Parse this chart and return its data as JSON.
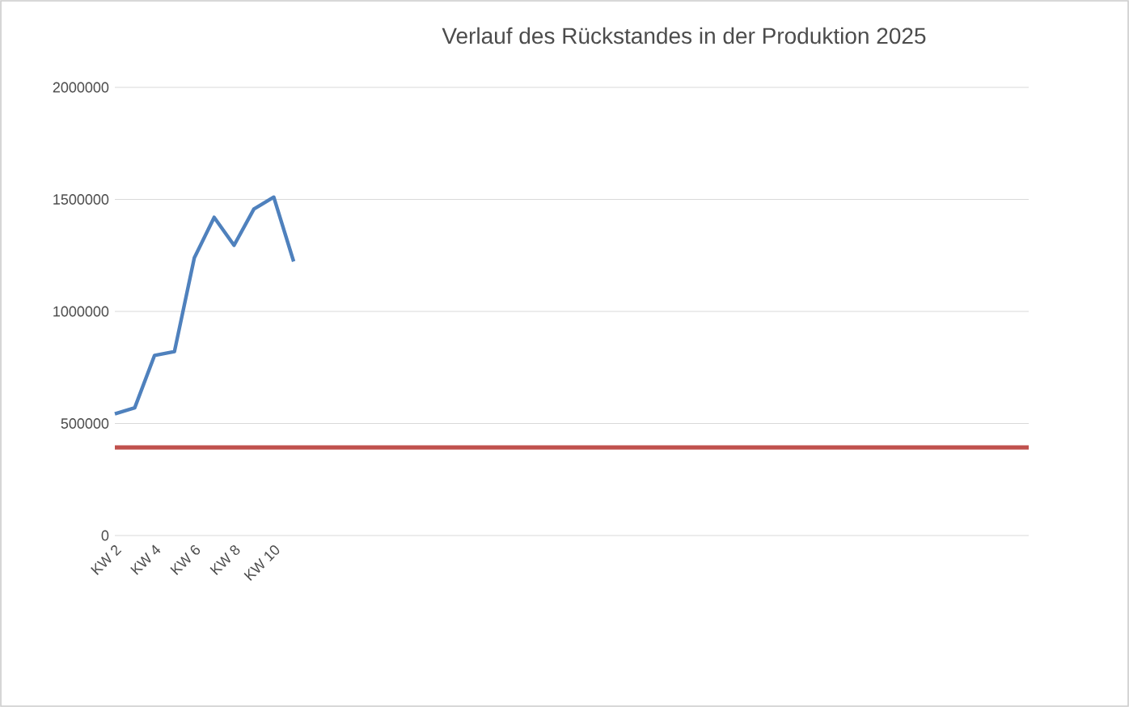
{
  "chart_data": {
    "type": "line",
    "title": "Verlauf des Rückstandes in der Produktion 2025",
    "categories": [
      "KW 2",
      null,
      "KW 4",
      null,
      "KW 6",
      null,
      "KW 8",
      null,
      "KW 10",
      null,
      null,
      null,
      null,
      null,
      null,
      null,
      null,
      null,
      null,
      null,
      null,
      null,
      null,
      null,
      null,
      null,
      null,
      null,
      null,
      null,
      null,
      null,
      null,
      null,
      null,
      null,
      null,
      null,
      null,
      null,
      null,
      null,
      null,
      null,
      null,
      null,
      null
    ],
    "series": [
      {
        "color": "#4f81bd",
        "values": [
          543000,
          570000,
          804000,
          821000,
          1239000,
          1420000,
          1295000,
          1457000,
          1510000,
          1223000,
          null,
          null,
          null,
          null,
          null,
          null,
          null,
          null,
          null,
          null,
          null,
          null,
          null,
          null,
          null,
          null,
          null,
          null,
          null,
          null,
          null,
          null,
          null,
          null,
          null,
          null,
          null,
          null,
          null,
          null,
          null,
          null,
          null,
          null,
          null,
          null,
          null
        ]
      },
      {
        "color": "#c0504d",
        "values": [
          393000,
          393000,
          393000,
          393000,
          393000,
          393000,
          393000,
          393000,
          393000,
          393000,
          393000,
          393000,
          393000,
          393000,
          393000,
          393000,
          393000,
          393000,
          393000,
          393000,
          393000,
          393000,
          393000,
          393000,
          393000,
          393000,
          393000,
          393000,
          393000,
          393000,
          393000,
          393000,
          393000,
          393000,
          393000,
          393000,
          393000,
          393000,
          393000,
          393000,
          393000,
          393000,
          393000,
          393000,
          393000,
          393000,
          393000
        ]
      }
    ],
    "ylim": [
      0,
      2000000
    ],
    "yticks": [
      0,
      500000,
      1000000,
      1500000,
      2000000
    ],
    "grid": "y"
  }
}
